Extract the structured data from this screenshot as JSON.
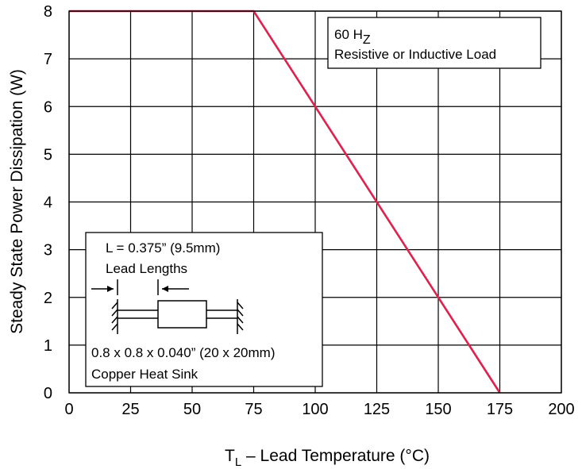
{
  "chart_data": {
    "type": "line",
    "xlabel": {
      "main": "T",
      "sub": "L",
      "rest": " – Lead Temperature (°C)"
    },
    "ylabel": "Steady State Power Dissipation (W)",
    "xlim": [
      0,
      200
    ],
    "ylim": [
      0,
      8
    ],
    "xticks": [
      0,
      25,
      50,
      75,
      100,
      125,
      150,
      175,
      200
    ],
    "yticks": [
      0,
      1,
      2,
      3,
      4,
      5,
      6,
      7,
      8
    ],
    "grid": true,
    "series": [
      {
        "color": "#e0204d",
        "x": [
          0,
          75,
          175
        ],
        "y": [
          8,
          8,
          0
        ]
      }
    ],
    "annotations": {
      "condition": {
        "freq": "60 H",
        "freq_sub": "Z",
        "line2": "Resistive or Inductive Load"
      },
      "inset": {
        "line1": "L = 0.375” (9.5mm)",
        "line2": "Lead Lengths",
        "line3": "0.8 x 0.8 x 0.040” (20 x 20mm)",
        "line4": "Copper Heat Sink"
      }
    }
  }
}
